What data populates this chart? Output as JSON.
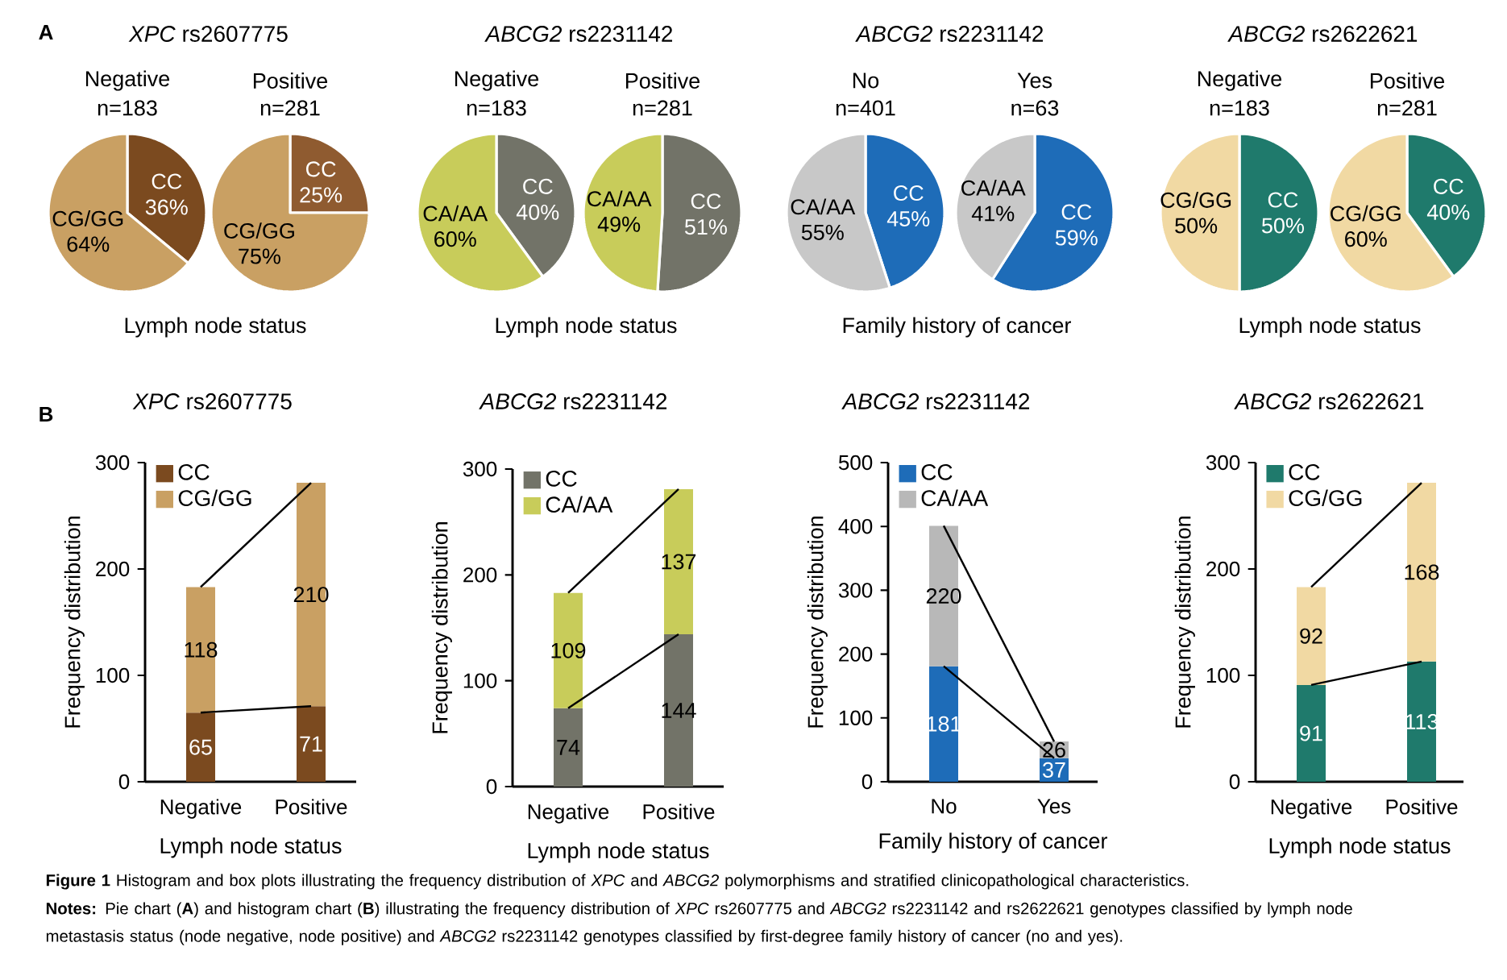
{
  "chart_data": [
    {
      "type": "pie",
      "title": "*XPC* rs2607775",
      "subtitle": "Negative",
      "xlabel": "Lymph node status",
      "categories": [
        "CC",
        "CG/GG"
      ],
      "values": [
        36,
        64
      ],
      "value_labels": [
        "36%",
        "64%"
      ],
      "colors": [
        "#7b4a1f",
        "#c9a063"
      ],
      "annotations": [
        "n=183",
        "A"
      ]
    },
    {
      "type": "pie",
      "subtitle": "Positive",
      "categories": [
        "CC",
        "CG/GG"
      ],
      "values": [
        25,
        75
      ],
      "value_labels": [
        "25%",
        "75%"
      ],
      "colors": [
        "#8f5b30",
        "#c9a063"
      ],
      "annotations": [
        "n=281"
      ]
    },
    {
      "type": "pie",
      "title": "*ABCG2* rs2231142",
      "subtitle": "Negative",
      "xlabel": "Lymph node status",
      "categories": [
        "CC",
        "CA/AA"
      ],
      "values": [
        40,
        60
      ],
      "value_labels": [
        "40%",
        "60%"
      ],
      "colors": [
        "#727368",
        "#c8cc5a"
      ],
      "annotations": [
        "n=183"
      ]
    },
    {
      "type": "pie",
      "subtitle": "Positive",
      "categories": [
        "CC",
        "CA/AA"
      ],
      "values": [
        51,
        49
      ],
      "value_labels": [
        "51%",
        "49%"
      ],
      "colors": [
        "#727368",
        "#c8cc5a"
      ],
      "annotations": [
        "n=281"
      ]
    },
    {
      "type": "pie",
      "title": "*ABCG2* rs2231142",
      "subtitle": "No",
      "xlabel": "Family history of cancer",
      "categories": [
        "CC",
        "CA/AA"
      ],
      "values": [
        45,
        55
      ],
      "value_labels": [
        "45%",
        "55%"
      ],
      "colors": [
        "#1e6cb8",
        "#c8c8c8"
      ],
      "annotations": [
        "n=401"
      ]
    },
    {
      "type": "pie",
      "subtitle": "Yes",
      "categories": [
        "CC",
        "CA/AA"
      ],
      "values": [
        59,
        41
      ],
      "value_labels": [
        "59%",
        "41%"
      ],
      "colors": [
        "#1e6cb8",
        "#c8c8c8"
      ],
      "annotations": [
        "n=63"
      ]
    },
    {
      "type": "pie",
      "title": "*ABCG2* rs2622621",
      "subtitle": "Negative",
      "xlabel": "Lymph node status",
      "categories": [
        "CC",
        "CG/GG"
      ],
      "values": [
        50,
        50
      ],
      "value_labels": [
        "50%",
        "50%"
      ],
      "colors": [
        "#1f7a6c",
        "#f1d9a3"
      ],
      "annotations": [
        "n=183"
      ]
    },
    {
      "type": "pie",
      "subtitle": "Positive",
      "categories": [
        "CC",
        "CG/GG"
      ],
      "values": [
        40,
        60
      ],
      "value_labels": [
        "40%",
        "60%"
      ],
      "colors": [
        "#1f7a6c",
        "#f1d9a3"
      ],
      "annotations": [
        "n=281"
      ]
    },
    {
      "type": "bar",
      "stacked": true,
      "title": "*XPC* rs2607775",
      "categories": [
        "Negative",
        "Positive"
      ],
      "xlabel": "Lymph node status",
      "ylabel": "Frequency distribution",
      "ylim": [
        0,
        300
      ],
      "yticks": [
        0,
        100,
        200,
        300
      ],
      "legend": "top left",
      "series": [
        {
          "name": "CC",
          "color": "#7b4a1f",
          "values": [
            65,
            71
          ],
          "value_labels": [
            "65",
            "71"
          ]
        },
        {
          "name": "CG/GG",
          "color": "#c9a063",
          "values": [
            118,
            210
          ],
          "value_labels": [
            "118",
            "210"
          ]
        },
        {
          "type": "line",
          "color": "#000000",
          "values": [
            65,
            71
          ]
        },
        {
          "type": "line",
          "color": "#000000",
          "values": [
            183,
            281
          ]
        }
      ],
      "annotations": [
        "B"
      ]
    },
    {
      "type": "bar",
      "stacked": true,
      "title": "*ABCG2* rs2231142",
      "categories": [
        "Negative",
        "Positive"
      ],
      "xlabel": "Lymph node status",
      "ylabel": "Frequency distribution",
      "ylim": [
        0,
        300
      ],
      "yticks": [
        0,
        100,
        200,
        300
      ],
      "legend": "top left",
      "series": [
        {
          "name": "CC",
          "color": "#727368",
          "values": [
            74,
            144
          ],
          "value_labels": [
            "74",
            "144"
          ]
        },
        {
          "name": "CA/AA",
          "color": "#c8cc5a",
          "values": [
            109,
            137
          ],
          "value_labels": [
            "109",
            "137"
          ]
        },
        {
          "type": "line",
          "color": "#000000",
          "values": [
            74,
            144
          ]
        },
        {
          "type": "line",
          "color": "#000000",
          "values": [
            183,
            281
          ]
        }
      ]
    },
    {
      "type": "bar",
      "stacked": true,
      "title": "*ABCG2* rs2231142",
      "categories": [
        "No",
        "Yes"
      ],
      "xlabel": "Family history of cancer",
      "ylabel": "Frequency distribution",
      "ylim": [
        0,
        500
      ],
      "yticks": [
        0,
        100,
        200,
        300,
        400,
        500
      ],
      "legend": "top left",
      "series": [
        {
          "name": "CC",
          "color": "#1e6cb8",
          "values": [
            181,
            37
          ],
          "value_labels": [
            "181",
            "37"
          ]
        },
        {
          "name": "CA/AA",
          "color": "#b8b8b8",
          "values": [
            220,
            26
          ],
          "value_labels": [
            "220",
            "26"
          ]
        },
        {
          "type": "line",
          "color": "#000000",
          "values": [
            181,
            37
          ]
        },
        {
          "type": "line",
          "color": "#000000",
          "values": [
            401,
            63
          ]
        }
      ]
    },
    {
      "type": "bar",
      "stacked": true,
      "title": "*ABCG2* rs2622621",
      "categories": [
        "Negative",
        "Positive"
      ],
      "xlabel": "Lymph node status",
      "ylabel": "Frequency distribution",
      "ylim": [
        0,
        300
      ],
      "yticks": [
        0,
        100,
        200,
        300
      ],
      "legend": "top left",
      "series": [
        {
          "name": "CC",
          "color": "#1f7a6c",
          "values": [
            91,
            113
          ],
          "value_labels": [
            "91",
            "113"
          ]
        },
        {
          "name": "CG/GG",
          "color": "#f1d9a3",
          "values": [
            92,
            168
          ],
          "value_labels": [
            "92",
            "168"
          ]
        },
        {
          "type": "line",
          "color": "#000000",
          "values": [
            91,
            113
          ]
        },
        {
          "type": "line",
          "color": "#000000",
          "values": [
            183,
            281
          ]
        }
      ],
      "annotations": [
        "**Figure 1** Histogram and box plots illustrating the frequency distribution of *XPC* and *ABCG2* polymorphisms and stratified clinicopathological characteristics.",
        "**Notes:** Pie chart (**A**) and histogram chart (**B**) illustrating the frequency distribution of *XPC* rs2607775 and *ABCG2* rs2231142 and rs2622621 genotypes classified by lymph node metastasis status (node negative, node positive) and *ABCG2* rs2231142 genotypes classified by first-degree family history of cancer (no and yes)."
      ]
    }
  ]
}
